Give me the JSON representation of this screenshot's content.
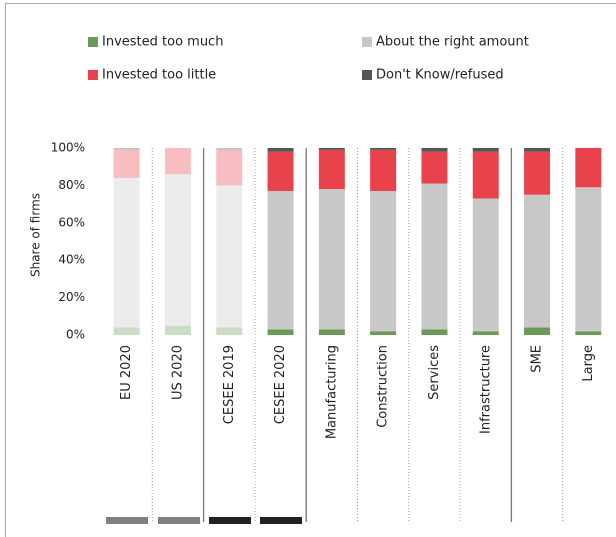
{
  "chart_data": {
    "type": "stacked_bar",
    "categories": [
      "EU 2020",
      "US 2020",
      "CESEE 2019",
      "CESEE 2020",
      "Manufacturing",
      "Construction",
      "Services",
      "Infrastructure",
      "SME",
      "Large"
    ],
    "series": [
      {
        "name": "Invested too much",
        "color": "#6a9a55",
        "values": [
          4,
          5,
          4,
          3,
          3,
          2,
          3,
          2,
          4,
          2
        ]
      },
      {
        "name": "About the right amount",
        "color": "#c8c8c8",
        "values": [
          80,
          81,
          76,
          74,
          75,
          75,
          78,
          71,
          71,
          77
        ]
      },
      {
        "name": "Invested too little",
        "color": "#e8434d",
        "values": [
          15,
          14,
          19,
          21,
          21,
          22,
          17,
          25,
          23,
          21
        ]
      },
      {
        "name": "Don't Know/refused",
        "color": "#555555",
        "values": [
          1,
          0,
          1,
          2,
          1,
          1,
          2,
          2,
          2,
          0
        ]
      }
    ],
    "bar_opacity": [
      0.35,
      0.35,
      0.35,
      1,
      1,
      1,
      1,
      1,
      1,
      1
    ],
    "ylabel": "Share of firms",
    "ylim": [
      0,
      100
    ],
    "yticks": [
      {
        "value": 0,
        "label": "0%"
      },
      {
        "value": 20,
        "label": "20%"
      },
      {
        "value": 40,
        "label": "40%"
      },
      {
        "value": 60,
        "label": "60%"
      },
      {
        "value": 80,
        "label": "80%"
      },
      {
        "value": 100,
        "label": "100%"
      }
    ]
  }
}
